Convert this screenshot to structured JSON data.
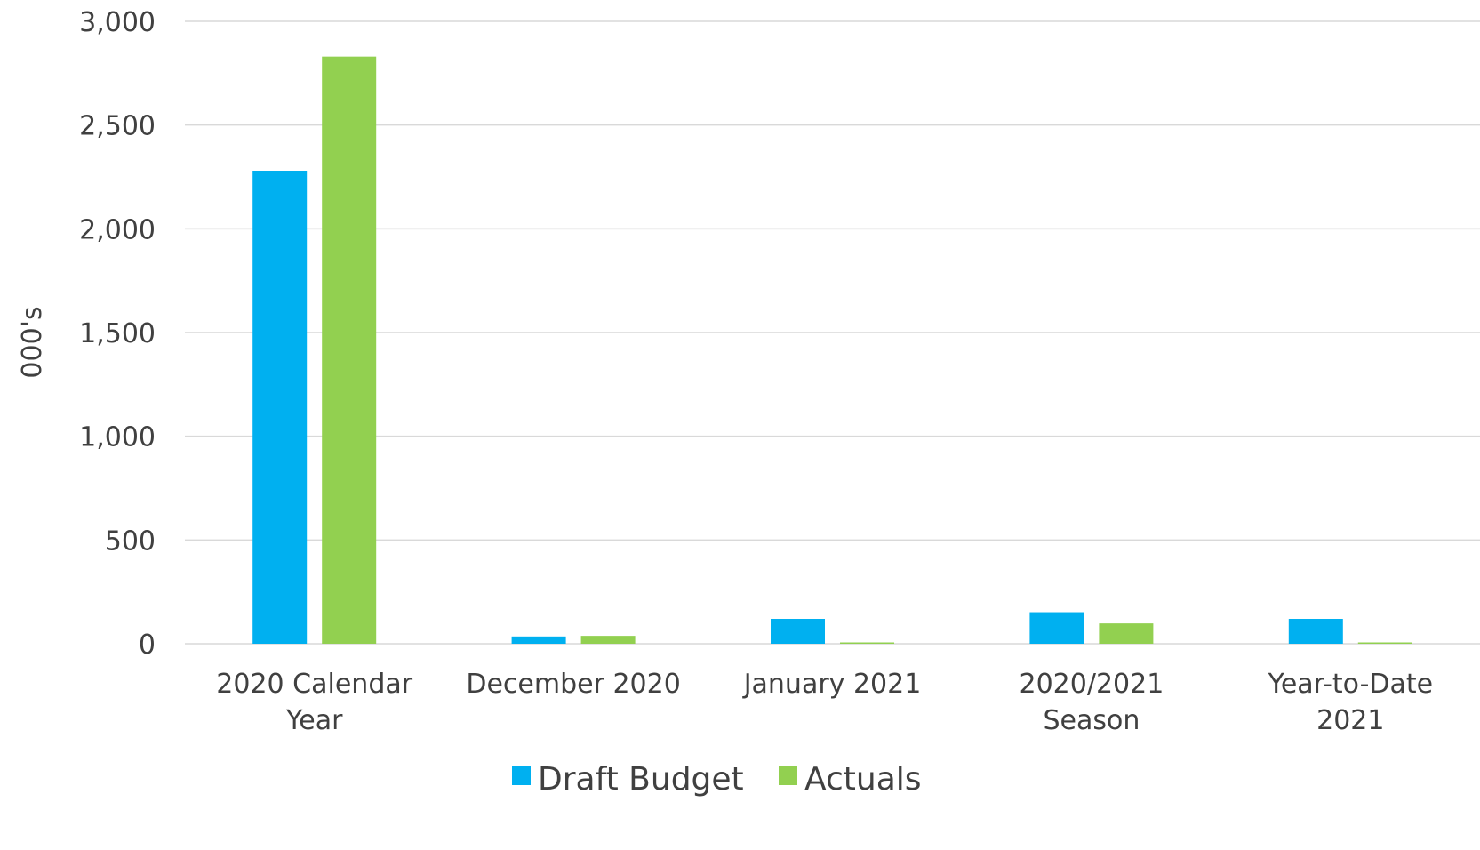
{
  "chart_data": {
    "type": "bar",
    "categories": [
      [
        "2020 Calendar",
        "Year"
      ],
      [
        "December 2020"
      ],
      [
        "January 2021"
      ],
      [
        "2020/2021",
        "Season"
      ],
      [
        "Year-to-Date",
        "2021"
      ]
    ],
    "series": [
      {
        "name": "Draft Budget",
        "color": "#00b0f0",
        "values": [
          2280,
          35,
          120,
          152,
          120
        ]
      },
      {
        "name": "Actuals",
        "color": "#92d050",
        "values": [
          2830,
          38,
          5,
          98,
          5
        ]
      }
    ],
    "ylabel": "000's",
    "xlabel": "",
    "ylim": [
      0,
      3000
    ],
    "yticks": [
      "0",
      "500",
      "1,000",
      "1,500",
      "2,000",
      "2,500",
      "3,000"
    ],
    "grid": true,
    "gridColor": "#d9d9d9",
    "legend": "bottom"
  }
}
